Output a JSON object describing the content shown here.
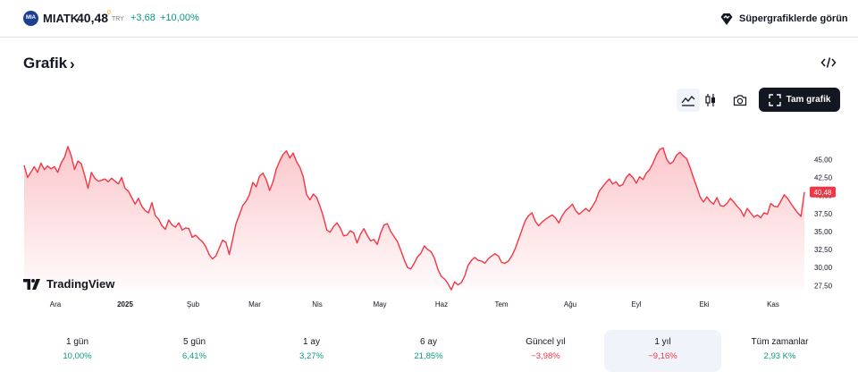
{
  "header": {
    "logo_text": "MIA",
    "symbol": "MIATK",
    "price": "40,48",
    "price_mark": "0",
    "currency": "TRY",
    "change": "+3,68",
    "change_percent": "+10,00%",
    "supercharts_label": "Süpergrafiklerde görün"
  },
  "section": {
    "title": "Grafik",
    "chevron": "›"
  },
  "toolbar": {
    "fullscreen_label": "Tam grafik",
    "icons": [
      "line-chart-icon",
      "candles-icon",
      "camera-icon",
      "fullscreen-icon",
      "embed-code-icon"
    ]
  },
  "branding": {
    "tradingview_label": "TradingView"
  },
  "colors": {
    "line": "#f23645",
    "positive": "#089981",
    "negative": "#f23645",
    "last_price_badge": "#f23645"
  },
  "chart_data": {
    "type": "area",
    "x_labels": [
      "Ara",
      "2025",
      "Şub",
      "Mar",
      "Nis",
      "May",
      "Haz",
      "Tem",
      "Ağu",
      "Eyl",
      "Eki",
      "Kas"
    ],
    "y_ticks": [
      "45,00",
      "42,50",
      "40,00",
      "37,50",
      "35,00",
      "32,50",
      "30,00",
      "27,50"
    ],
    "ylim": [
      26.8,
      47.4
    ],
    "last_value_label": "40,48",
    "values": [
      44.2,
      42.5,
      43.2,
      44.0,
      43.2,
      44.5,
      43.6,
      44.1,
      43.7,
      44.0,
      43.2,
      44.5,
      45.3,
      46.8,
      45.5,
      43.6,
      44.8,
      44.4,
      42.8,
      41.0,
      43.2,
      42.4,
      42.0,
      42.1,
      42.3,
      41.9,
      42.4,
      42.0,
      41.6,
      42.5,
      41.0,
      40.6,
      39.7,
      38.8,
      39.6,
      38.5,
      37.9,
      37.6,
      39.0,
      37.2,
      36.7,
      35.8,
      35.3,
      36.6,
      35.9,
      35.6,
      36.2,
      35.2,
      35.5,
      35.4,
      34.2,
      34.5,
      34.0,
      33.6,
      32.9,
      31.8,
      31.2,
      31.6,
      32.7,
      33.8,
      33.5,
      31.8,
      33.9,
      36.1,
      37.3,
      38.6,
      39.2,
      40.1,
      41.8,
      41.2,
      42.7,
      43.1,
      42.2,
      40.7,
      41.9,
      43.7,
      44.8,
      45.7,
      46.2,
      45.2,
      45.9,
      44.7,
      43.9,
      42.6,
      40.1,
      39.4,
      40.2,
      39.7,
      38.5,
      37.0,
      35.2,
      34.9,
      35.7,
      36.2,
      35.5,
      34.4,
      34.5,
      35.1,
      34.8,
      33.4,
      34.6,
      35.4,
      34.5,
      33.7,
      33.9,
      33.2,
      34.8,
      35.9,
      36.1,
      35.0,
      34.3,
      33.6,
      32.4,
      31.1,
      30.0,
      29.8,
      30.6,
      31.5,
      32.0,
      33.0,
      32.5,
      32.2,
      31.3,
      29.8,
      28.8,
      28.4,
      27.8,
      26.9,
      28.0,
      27.6,
      27.9,
      28.8,
      30.3,
      31.0,
      31.4,
      31.0,
      30.9,
      30.6,
      31.2,
      31.6,
      31.9,
      31.6,
      30.7,
      30.6,
      30.9,
      31.6,
      32.6,
      33.9,
      35.2,
      36.5,
      37.2,
      37.6,
      36.4,
      35.8,
      36.3,
      36.7,
      37.0,
      37.3,
      36.9,
      36.2,
      37.2,
      37.9,
      38.3,
      38.8,
      37.9,
      37.4,
      37.8,
      38.2,
      37.8,
      38.5,
      39.3,
      40.6,
      41.2,
      41.8,
      42.3,
      41.6,
      41.9,
      41.3,
      41.5,
      42.5,
      43.0,
      42.5,
      41.7,
      42.6,
      42.2,
      43.1,
      43.6,
      44.5,
      45.6,
      46.4,
      46.6,
      45.1,
      44.4,
      44.7,
      45.6,
      46.0,
      45.5,
      45.1,
      43.9,
      42.5,
      41.2,
      39.8,
      39.1,
      39.8,
      39.2,
      38.8,
      39.7,
      38.6,
      38.5,
      38.9,
      39.6,
      39.1,
      38.5,
      38.0,
      37.1,
      38.2,
      37.6,
      37.0,
      37.3,
      36.9,
      37.6,
      37.4,
      38.9,
      38.5,
      38.4,
      39.2,
      40.1,
      39.6,
      38.9,
      38.2,
      37.6,
      37.1,
      40.48
    ]
  },
  "periods": [
    {
      "label": "1 gün",
      "value": "10,00%",
      "dir": "pos",
      "active": false
    },
    {
      "label": "5 gün",
      "value": "6,41%",
      "dir": "pos",
      "active": false
    },
    {
      "label": "1 ay",
      "value": "3,27%",
      "dir": "pos",
      "active": false
    },
    {
      "label": "6 ay",
      "value": "21,85%",
      "dir": "pos",
      "active": false
    },
    {
      "label": "Güncel yıl",
      "value": "−3,98%",
      "dir": "neg",
      "active": false
    },
    {
      "label": "1 yıl",
      "value": "−9,16%",
      "dir": "neg",
      "active": true
    },
    {
      "label": "Tüm zamanlar",
      "value": "2,93 K%",
      "dir": "pos",
      "active": false
    }
  ]
}
